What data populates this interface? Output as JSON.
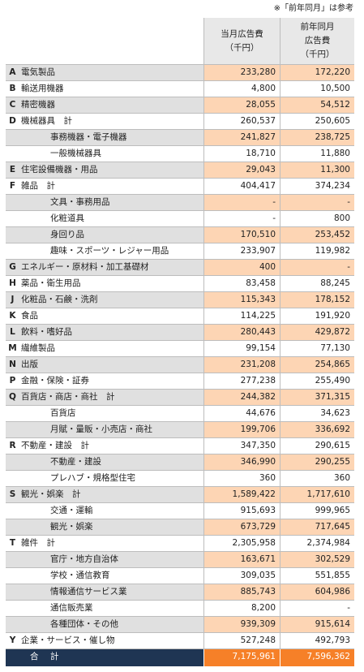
{
  "note": "※「前年同月」は参考",
  "header": {
    "col1": [
      "当月広告費",
      "（千円）"
    ],
    "col2": [
      "前年同月",
      "広告費",
      "（千円）"
    ]
  },
  "colors": {
    "shade_label": "#e0e0e0",
    "shade_value": "#fdd5b4",
    "total_label_bg": "#1f3553",
    "total_value_bg": "#f68028"
  },
  "rows": [
    {
      "code": "A",
      "label": "電気製品",
      "current": "233,280",
      "previous": "172,220",
      "sub": false,
      "shaded": true
    },
    {
      "code": "B",
      "label": "輸送用機器",
      "current": "4,800",
      "previous": "10,500",
      "sub": false,
      "shaded": false
    },
    {
      "code": "C",
      "label": "精密機器",
      "current": "28,055",
      "previous": "54,512",
      "sub": false,
      "shaded": true
    },
    {
      "code": "D",
      "label": "機械器具　計",
      "current": "260,537",
      "previous": "250,605",
      "sub": false,
      "shaded": false
    },
    {
      "code": "",
      "label": "事務機器・電子機器",
      "current": "241,827",
      "previous": "238,725",
      "sub": true,
      "shaded": true
    },
    {
      "code": "",
      "label": "一般機械器具",
      "current": "18,710",
      "previous": "11,880",
      "sub": true,
      "shaded": false
    },
    {
      "code": "E",
      "label": "住宅設備機器・用品",
      "current": "29,043",
      "previous": "11,300",
      "sub": false,
      "shaded": true
    },
    {
      "code": "F",
      "label": "雑品　計",
      "current": "404,417",
      "previous": "374,234",
      "sub": false,
      "shaded": false
    },
    {
      "code": "",
      "label": "文具・事務用品",
      "current": "-",
      "previous": "-",
      "sub": true,
      "shaded": true
    },
    {
      "code": "",
      "label": "化粧道具",
      "current": "-",
      "previous": "800",
      "sub": true,
      "shaded": false
    },
    {
      "code": "",
      "label": "身回り品",
      "current": "170,510",
      "previous": "253,452",
      "sub": true,
      "shaded": true
    },
    {
      "code": "",
      "label": "趣味・スポーツ・レジャー用品",
      "current": "233,907",
      "previous": "119,982",
      "sub": true,
      "shaded": false
    },
    {
      "code": "G",
      "label": "エネルギー・原材料・加工基礎材",
      "current": "400",
      "previous": "-",
      "sub": false,
      "shaded": true
    },
    {
      "code": "H",
      "label": "薬品・衛生用品",
      "current": "83,458",
      "previous": "88,245",
      "sub": false,
      "shaded": false
    },
    {
      "code": "J",
      "label": "化粧品・石鹸・洗剤",
      "current": "115,343",
      "previous": "178,152",
      "sub": false,
      "shaded": true
    },
    {
      "code": "K",
      "label": "食品",
      "current": "114,225",
      "previous": "191,920",
      "sub": false,
      "shaded": false
    },
    {
      "code": "L",
      "label": "飲料・嗜好品",
      "current": "280,443",
      "previous": "429,872",
      "sub": false,
      "shaded": true
    },
    {
      "code": "M",
      "label": "繊維製品",
      "current": "99,154",
      "previous": "77,130",
      "sub": false,
      "shaded": false
    },
    {
      "code": "N",
      "label": "出版",
      "current": "231,208",
      "previous": "254,865",
      "sub": false,
      "shaded": true
    },
    {
      "code": "P",
      "label": "金融・保険・証券",
      "current": "277,238",
      "previous": "255,490",
      "sub": false,
      "shaded": false
    },
    {
      "code": "Q",
      "label": "百貨店・商店・商社　計",
      "current": "244,382",
      "previous": "371,315",
      "sub": false,
      "shaded": true
    },
    {
      "code": "",
      "label": "百貨店",
      "current": "44,676",
      "previous": "34,623",
      "sub": true,
      "shaded": false
    },
    {
      "code": "",
      "label": "月賦・量販・小売店・商社",
      "current": "199,706",
      "previous": "336,692",
      "sub": true,
      "shaded": true
    },
    {
      "code": "R",
      "label": "不動産・建設　計",
      "current": "347,350",
      "previous": "290,615",
      "sub": false,
      "shaded": false
    },
    {
      "code": "",
      "label": "不動産・建設",
      "current": "346,990",
      "previous": "290,255",
      "sub": true,
      "shaded": true
    },
    {
      "code": "",
      "label": "プレハブ・規格型住宅",
      "current": "360",
      "previous": "360",
      "sub": true,
      "shaded": false
    },
    {
      "code": "S",
      "label": "観光・娯楽　計",
      "current": "1,589,422",
      "previous": "1,717,610",
      "sub": false,
      "shaded": true
    },
    {
      "code": "",
      "label": "交通・運輸",
      "current": "915,693",
      "previous": "999,965",
      "sub": true,
      "shaded": false
    },
    {
      "code": "",
      "label": "観光・娯楽",
      "current": "673,729",
      "previous": "717,645",
      "sub": true,
      "shaded": true
    },
    {
      "code": "T",
      "label": "雑件　計",
      "current": "2,305,958",
      "previous": "2,374,984",
      "sub": false,
      "shaded": false
    },
    {
      "code": "",
      "label": "官庁・地方自治体",
      "current": "163,671",
      "previous": "302,529",
      "sub": true,
      "shaded": true
    },
    {
      "code": "",
      "label": "学校・通信教育",
      "current": "309,035",
      "previous": "551,855",
      "sub": true,
      "shaded": false
    },
    {
      "code": "",
      "label": "情報通信サービス業",
      "current": "885,743",
      "previous": "604,986",
      "sub": true,
      "shaded": true
    },
    {
      "code": "",
      "label": "通信販売業",
      "current": "8,200",
      "previous": "-",
      "sub": true,
      "shaded": false
    },
    {
      "code": "",
      "label": "各種団体・その他",
      "current": "939,309",
      "previous": "915,614",
      "sub": true,
      "shaded": true
    },
    {
      "code": "Y",
      "label": "企業・サービス・催し物",
      "current": "527,248",
      "previous": "492,793",
      "sub": false,
      "shaded": false
    }
  ],
  "total": {
    "label": "合　計",
    "current": "7,175,961",
    "previous": "7,596,362"
  }
}
